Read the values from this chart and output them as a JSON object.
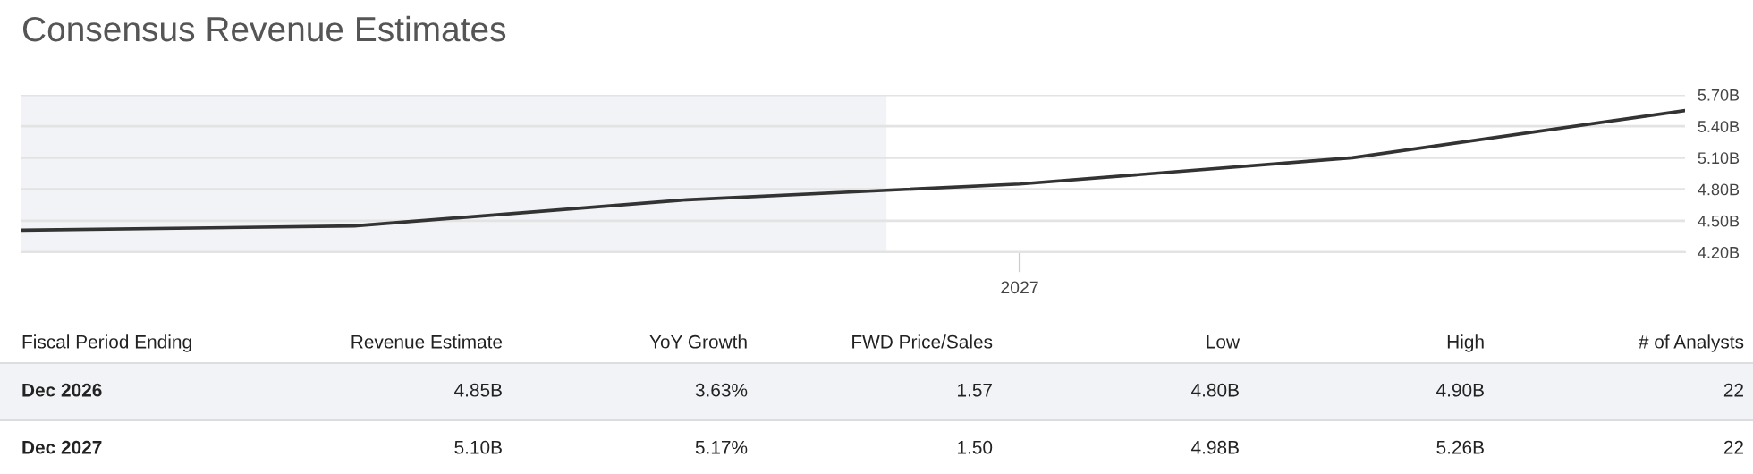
{
  "chart_data": {
    "type": "line",
    "title": "Consensus Revenue Estimates",
    "categories": [
      null,
      null,
      null,
      "2027",
      null,
      null
    ],
    "series": [
      {
        "color": "#333333",
        "values": [
          4.41,
          4.45,
          4.7,
          4.85,
          5.1,
          5.55
        ]
      }
    ],
    "ylim": [
      4.2,
      5.7
    ],
    "yticks": [
      {
        "value": 4.2,
        "label": "4.20B"
      },
      {
        "value": 4.5,
        "label": "4.50B"
      },
      {
        "value": 4.8,
        "label": "4.80B"
      },
      {
        "value": 5.1,
        "label": "5.10B"
      },
      {
        "value": 5.4,
        "label": "5.40B"
      },
      {
        "value": 5.7,
        "label": "5.70B"
      }
    ],
    "grid": "y",
    "marker": "none",
    "line_style": "solid",
    "annotations": [
      "Fiscal Period Ending",
      "Revenue Estimate",
      "YoY Growth",
      "FWD Price/Sales",
      "Low",
      "High",
      "# of Analysts",
      "Dec 2026",
      "4.85B",
      "3.63%",
      "1.57",
      "4.80B",
      "4.90B",
      "22",
      "Dec 2027",
      "5.10B",
      "5.17%",
      "1.50",
      "4.98B",
      "5.26B",
      "22"
    ]
  }
}
